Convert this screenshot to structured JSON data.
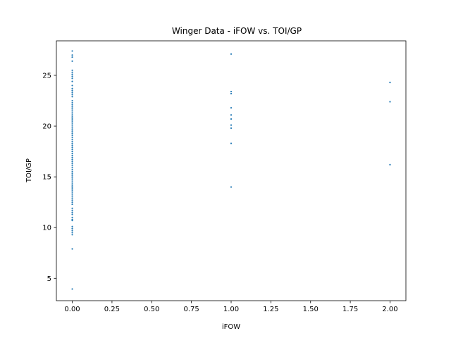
{
  "chart_data": {
    "type": "scatter",
    "title": "Winger Data - iFOW vs. TOI/GP",
    "xlabel": "iFOW",
    "ylabel": "TOI/GP",
    "xlim": [
      -0.1,
      2.1
    ],
    "ylim": [
      2.8,
      28.4
    ],
    "xticks": [
      0.0,
      0.25,
      0.5,
      0.75,
      1.0,
      1.25,
      1.5,
      1.75,
      2.0
    ],
    "xtick_labels": [
      "0.00",
      "0.25",
      "0.50",
      "0.75",
      "1.00",
      "1.25",
      "1.50",
      "1.75",
      "2.00"
    ],
    "yticks": [
      5,
      10,
      15,
      20,
      25
    ],
    "ytick_labels": [
      "5",
      "10",
      "15",
      "20",
      "25"
    ],
    "grid": false,
    "marker_color": "#1f77b4",
    "points": [
      {
        "x": 0,
        "y": 3.95
      },
      {
        "x": 0,
        "y": 7.9
      },
      {
        "x": 0,
        "y": 9.3
      },
      {
        "x": 0,
        "y": 9.5
      },
      {
        "x": 0,
        "y": 9.7
      },
      {
        "x": 0,
        "y": 9.9
      },
      {
        "x": 0,
        "y": 10.1
      },
      {
        "x": 0,
        "y": 10.7
      },
      {
        "x": 0,
        "y": 10.8
      },
      {
        "x": 0,
        "y": 11.0
      },
      {
        "x": 0,
        "y": 11.3
      },
      {
        "x": 0,
        "y": 11.5
      },
      {
        "x": 0,
        "y": 11.7
      },
      {
        "x": 0,
        "y": 11.9
      },
      {
        "x": 0,
        "y": 12.3
      },
      {
        "x": 0,
        "y": 12.5
      },
      {
        "x": 0,
        "y": 12.7
      },
      {
        "x": 0,
        "y": 12.9
      },
      {
        "x": 0,
        "y": 13.1
      },
      {
        "x": 0,
        "y": 13.3
      },
      {
        "x": 0,
        "y": 13.5
      },
      {
        "x": 0,
        "y": 13.7
      },
      {
        "x": 0,
        "y": 13.9
      },
      {
        "x": 0,
        "y": 14.1
      },
      {
        "x": 0,
        "y": 14.3
      },
      {
        "x": 0,
        "y": 14.5
      },
      {
        "x": 0,
        "y": 14.7
      },
      {
        "x": 0,
        "y": 14.9
      },
      {
        "x": 0,
        "y": 15.1
      },
      {
        "x": 0,
        "y": 15.3
      },
      {
        "x": 0,
        "y": 15.5
      },
      {
        "x": 0,
        "y": 15.7
      },
      {
        "x": 0,
        "y": 15.9
      },
      {
        "x": 0,
        "y": 16.1
      },
      {
        "x": 0,
        "y": 16.3
      },
      {
        "x": 0,
        "y": 16.5
      },
      {
        "x": 0,
        "y": 16.7
      },
      {
        "x": 0,
        "y": 16.9
      },
      {
        "x": 0,
        "y": 17.1
      },
      {
        "x": 0,
        "y": 17.3
      },
      {
        "x": 0,
        "y": 17.5
      },
      {
        "x": 0,
        "y": 17.7
      },
      {
        "x": 0,
        "y": 17.9
      },
      {
        "x": 0,
        "y": 18.1
      },
      {
        "x": 0,
        "y": 18.3
      },
      {
        "x": 0,
        "y": 18.5
      },
      {
        "x": 0,
        "y": 18.7
      },
      {
        "x": 0,
        "y": 18.9
      },
      {
        "x": 0,
        "y": 19.1
      },
      {
        "x": 0,
        "y": 19.3
      },
      {
        "x": 0,
        "y": 19.5
      },
      {
        "x": 0,
        "y": 19.7
      },
      {
        "x": 0,
        "y": 19.9
      },
      {
        "x": 0,
        "y": 20.1
      },
      {
        "x": 0,
        "y": 20.3
      },
      {
        "x": 0,
        "y": 20.5
      },
      {
        "x": 0,
        "y": 20.7
      },
      {
        "x": 0,
        "y": 20.9
      },
      {
        "x": 0,
        "y": 21.1
      },
      {
        "x": 0,
        "y": 21.3
      },
      {
        "x": 0,
        "y": 21.5
      },
      {
        "x": 0,
        "y": 21.7
      },
      {
        "x": 0,
        "y": 21.9
      },
      {
        "x": 0,
        "y": 22.1
      },
      {
        "x": 0,
        "y": 22.3
      },
      {
        "x": 0,
        "y": 22.5
      },
      {
        "x": 0,
        "y": 22.9
      },
      {
        "x": 0,
        "y": 23.1
      },
      {
        "x": 0,
        "y": 23.3
      },
      {
        "x": 0,
        "y": 23.5
      },
      {
        "x": 0,
        "y": 23.7
      },
      {
        "x": 0,
        "y": 24.0
      },
      {
        "x": 0,
        "y": 24.4
      },
      {
        "x": 0,
        "y": 24.7
      },
      {
        "x": 0,
        "y": 24.9
      },
      {
        "x": 0,
        "y": 25.1
      },
      {
        "x": 0,
        "y": 25.3
      },
      {
        "x": 0,
        "y": 25.5
      },
      {
        "x": 0,
        "y": 26.4
      },
      {
        "x": 0,
        "y": 26.8
      },
      {
        "x": 0,
        "y": 27.0
      },
      {
        "x": 0,
        "y": 27.4
      },
      {
        "x": 1,
        "y": 14.0
      },
      {
        "x": 1,
        "y": 18.3
      },
      {
        "x": 1,
        "y": 19.8
      },
      {
        "x": 1,
        "y": 20.1
      },
      {
        "x": 1,
        "y": 20.7
      },
      {
        "x": 1,
        "y": 21.1
      },
      {
        "x": 1,
        "y": 21.8
      },
      {
        "x": 1,
        "y": 23.2
      },
      {
        "x": 1,
        "y": 23.4
      },
      {
        "x": 1,
        "y": 27.1
      },
      {
        "x": 2,
        "y": 16.2
      },
      {
        "x": 2,
        "y": 22.4
      },
      {
        "x": 2,
        "y": 24.3
      }
    ]
  }
}
